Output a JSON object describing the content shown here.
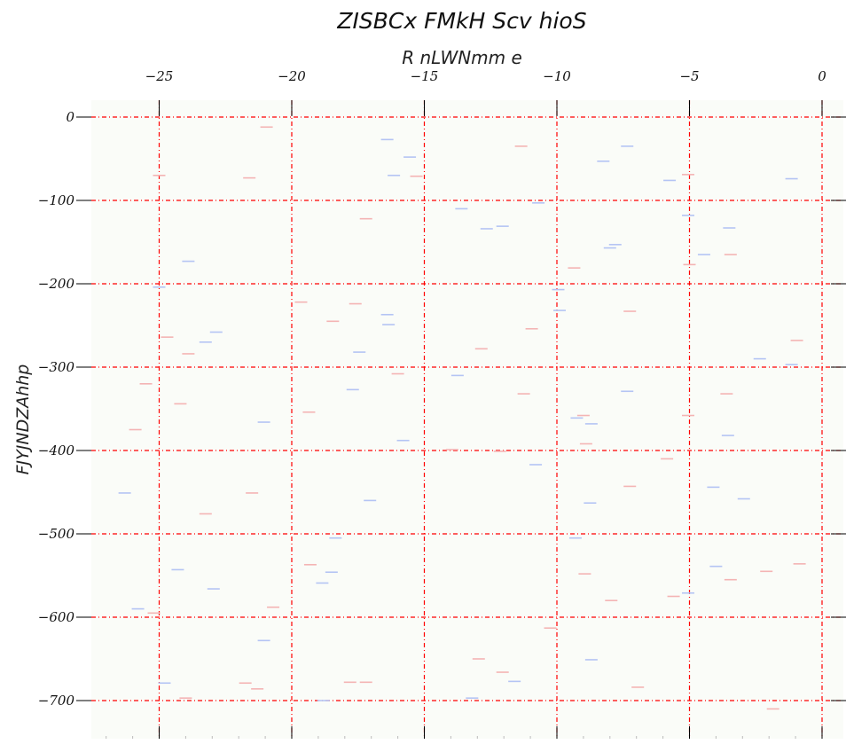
{
  "chart_data": {
    "type": "scatter",
    "title": "ZISBCx  FMkH Scv hioS",
    "xlabel": "R nLWNmm e",
    "ylabel": "FJYJNDZAhhp",
    "x_axis_position": "top",
    "xlim": [
      -27.5,
      0.5
    ],
    "ylim": [
      -745,
      20
    ],
    "xticks": [
      -25,
      -20,
      -15,
      -10,
      -5,
      0
    ],
    "xtick_labels": [
      "−25",
      "−20",
      "−15",
      "−10",
      "−5",
      "0"
    ],
    "yticks": [
      0,
      -100,
      -200,
      -300,
      -400,
      -500,
      -600,
      -700
    ],
    "ytick_labels": [
      "0",
      "−100",
      "−200",
      "−300",
      "−400",
      "−500",
      "−600",
      "−700"
    ],
    "grid": true,
    "grid_color": "#ff0000",
    "background_color": "#fafcf8",
    "marker": "short horizontal dash",
    "series": [
      {
        "color": "#f4b4b4",
        "points": [
          [
            -20.95,
            -12
          ],
          [
            -25,
            -70
          ],
          [
            -21.6,
            -73
          ],
          [
            -15.3,
            -71
          ],
          [
            -11.35,
            -35
          ],
          [
            -17.2,
            -122
          ],
          [
            -5.05,
            -69
          ],
          [
            -9.35,
            -181
          ],
          [
            -3.45,
            -165
          ],
          [
            -5,
            -177
          ],
          [
            -19.65,
            -222
          ],
          [
            -17.6,
            -224
          ],
          [
            -18.45,
            -245
          ],
          [
            -10.95,
            -254
          ],
          [
            -7.25,
            -233
          ],
          [
            -24.7,
            -264
          ],
          [
            -23.9,
            -284
          ],
          [
            -12.85,
            -278
          ],
          [
            -0.95,
            -268
          ],
          [
            -25.5,
            -320
          ],
          [
            -16,
            -308
          ],
          [
            -24.2,
            -344
          ],
          [
            -19.35,
            -354
          ],
          [
            -11.25,
            -332
          ],
          [
            -3.6,
            -332
          ],
          [
            -9,
            -358
          ],
          [
            -5.05,
            -358
          ],
          [
            -25.9,
            -375
          ],
          [
            -8.9,
            -392
          ],
          [
            -13.95,
            -399
          ],
          [
            -12.15,
            -401
          ],
          [
            -5.85,
            -410
          ],
          [
            -21.5,
            -451
          ],
          [
            -23.25,
            -476
          ],
          [
            -7.25,
            -443
          ],
          [
            -19.3,
            -537
          ],
          [
            -8.95,
            -548
          ],
          [
            -20.7,
            -588
          ],
          [
            -25.2,
            -595
          ],
          [
            -3.45,
            -555
          ],
          [
            -2.1,
            -545
          ],
          [
            -0.85,
            -536
          ],
          [
            -7.95,
            -580
          ],
          [
            -5.6,
            -575
          ],
          [
            -10.25,
            -613
          ],
          [
            -12.95,
            -650
          ],
          [
            -12.05,
            -666
          ],
          [
            -21.75,
            -679
          ],
          [
            -21.3,
            -686
          ],
          [
            -17.8,
            -678
          ],
          [
            -17.2,
            -678
          ],
          [
            -24,
            -697
          ],
          [
            -6.95,
            -684
          ],
          [
            -1.85,
            -710
          ]
        ]
      },
      {
        "color": "#b4c4f4",
        "points": [
          [
            -16.4,
            -27
          ],
          [
            -15.55,
            -48
          ],
          [
            -16.15,
            -70
          ],
          [
            -7.35,
            -35
          ],
          [
            -8.25,
            -53
          ],
          [
            -5.75,
            -76
          ],
          [
            -1.15,
            -74
          ],
          [
            -13.6,
            -110
          ],
          [
            -12.65,
            -134
          ],
          [
            -12.05,
            -131
          ],
          [
            -10.7,
            -103
          ],
          [
            -5.05,
            -118
          ],
          [
            -3.5,
            -133
          ],
          [
            -7.8,
            -153
          ],
          [
            -8,
            -157
          ],
          [
            -4.45,
            -165
          ],
          [
            -23.9,
            -173
          ],
          [
            -25,
            -204
          ],
          [
            -9.95,
            -207
          ],
          [
            -9.9,
            -232
          ],
          [
            -16.4,
            -237
          ],
          [
            -16.35,
            -249
          ],
          [
            -22.85,
            -258
          ],
          [
            -23.25,
            -270
          ],
          [
            -17.45,
            -282
          ],
          [
            -13.75,
            -310
          ],
          [
            -17.7,
            -327
          ],
          [
            -7.35,
            -329
          ],
          [
            -2.35,
            -290
          ],
          [
            -1.15,
            -297
          ],
          [
            -21.05,
            -366
          ],
          [
            -9.25,
            -361
          ],
          [
            -8.7,
            -368
          ],
          [
            -3.55,
            -382
          ],
          [
            -15.8,
            -388
          ],
          [
            -10.8,
            -417
          ],
          [
            -26.3,
            -451
          ],
          [
            -17.05,
            -460
          ],
          [
            -8.75,
            -463
          ],
          [
            -4.1,
            -444
          ],
          [
            -2.95,
            -458
          ],
          [
            -18.35,
            -505
          ],
          [
            -9.3,
            -505
          ],
          [
            -24.3,
            -543
          ],
          [
            -18.5,
            -546
          ],
          [
            -18.85,
            -559
          ],
          [
            -22.95,
            -566
          ],
          [
            -4,
            -539
          ],
          [
            -5.05,
            -571
          ],
          [
            -25.8,
            -590
          ],
          [
            -21.05,
            -628
          ],
          [
            -8.7,
            -651
          ],
          [
            -24.8,
            -679
          ],
          [
            -11.6,
            -677
          ],
          [
            -13.2,
            -697
          ],
          [
            -18.8,
            -700
          ]
        ]
      }
    ]
  }
}
